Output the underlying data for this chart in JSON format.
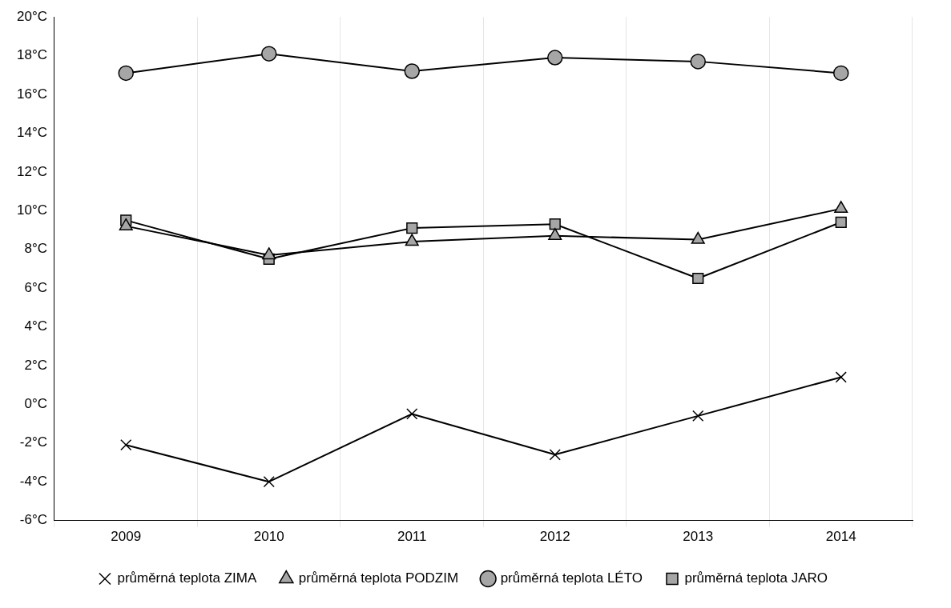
{
  "chart_data": {
    "type": "line",
    "categories": [
      "2009",
      "2010",
      "2011",
      "2012",
      "2013",
      "2014"
    ],
    "series": [
      {
        "name": "průměrná teplota JARO",
        "color": "#a6a6a6",
        "marker": "square",
        "values": [
          9.5,
          7.5,
          9.1,
          9.3,
          6.5,
          9.4
        ]
      },
      {
        "name": "průměrná teplota LÉTO",
        "color": "#a6a6a6",
        "marker": "circle",
        "values": [
          17.1,
          18.1,
          17.2,
          17.9,
          17.7,
          17.1
        ]
      },
      {
        "name": "průměrná teplota PODZIM",
        "color": "#a6a6a6",
        "marker": "triangle",
        "values": [
          9.2,
          7.7,
          8.4,
          8.7,
          8.5,
          10.1
        ]
      },
      {
        "name": "průměrná teplota ZIMA",
        "color": "#000000",
        "marker": "cross",
        "values": [
          -2.1,
          -4.0,
          -0.5,
          -2.6,
          -0.6,
          1.4
        ]
      }
    ],
    "ylim": [
      -6,
      20
    ],
    "yticks": [
      {
        "value": -6,
        "label": "-6°C"
      },
      {
        "value": -4,
        "label": "-4°C"
      },
      {
        "value": -2,
        "label": "-2°C"
      },
      {
        "value": 0,
        "label": "0°C"
      },
      {
        "value": 2,
        "label": "2°C"
      },
      {
        "value": 4,
        "label": "4°C"
      },
      {
        "value": 6,
        "label": "6°C"
      },
      {
        "value": 8,
        "label": "8°C"
      },
      {
        "value": 10,
        "label": "10°C"
      },
      {
        "value": 12,
        "label": "12°C"
      },
      {
        "value": 14,
        "label": "14°C"
      },
      {
        "value": 16,
        "label": "16°C"
      },
      {
        "value": 18,
        "label": "18°C"
      },
      {
        "value": 20,
        "label": "20°C"
      }
    ],
    "grid": "x",
    "legend": "bottom"
  }
}
